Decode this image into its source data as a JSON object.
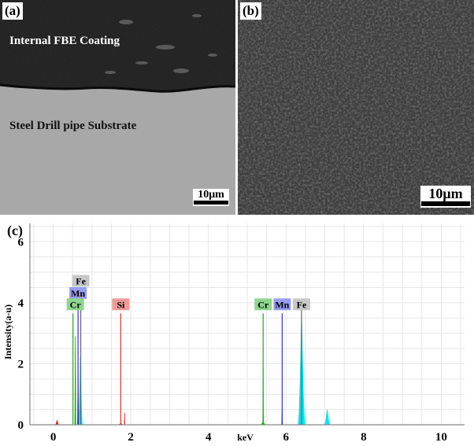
{
  "panel_a": {
    "label": "(a)",
    "coating_label": "Internal FBE Coating",
    "substrate_label": "Steel Drill pipe Substrate",
    "scale_bar": "10μm"
  },
  "panel_b": {
    "label": "(b)",
    "scale_bar": "10μm"
  },
  "panel_c": {
    "label": "(c)",
    "chart_data": {
      "type": "line",
      "xlabel": "keV",
      "ylabel": "Intensity(a-u)",
      "xlim": [
        -0.6,
        10.6
      ],
      "ylim": [
        0,
        6.6
      ],
      "x_ticks": [
        0,
        2,
        4,
        6,
        8,
        10
      ],
      "y_ticks": [
        0,
        2,
        4,
        6
      ],
      "grid": true,
      "peak_labels": [
        {
          "text": "Fe",
          "x": 0.71,
          "color": "#c8c8c8"
        },
        {
          "text": "Mn",
          "x": 0.64,
          "color": "#9a9cf0"
        },
        {
          "text": "Cr",
          "x": 0.57,
          "color": "#8fd48f"
        },
        {
          "text": "Si",
          "x": 1.74,
          "color": "#f29a9a"
        },
        {
          "text": "Cr",
          "x": 5.41,
          "color": "#8fd48f"
        },
        {
          "text": "Mn",
          "x": 5.9,
          "color": "#9a9cf0"
        },
        {
          "text": "Fe",
          "x": 6.4,
          "color": "#c8c8c8"
        }
      ],
      "marker_lines": [
        {
          "x": 0.51,
          "y": 3.65,
          "color": "#22aa22"
        },
        {
          "x": 0.64,
          "y": 3.8,
          "color": "#3333cc"
        },
        {
          "x": 0.71,
          "y": 3.9,
          "color": "#666666"
        },
        {
          "x": 1.74,
          "y": 3.65,
          "color": "#dd3333"
        },
        {
          "x": 5.41,
          "y": 3.65,
          "color": "#22aa22"
        },
        {
          "x": 5.9,
          "y": 3.65,
          "color": "#3333cc"
        },
        {
          "x": 6.4,
          "y": 3.9,
          "color": "#666666"
        }
      ],
      "series": [
        {
          "color": "#00e5ee",
          "peaks": [
            {
              "x": 0.7,
              "h": 2.2,
              "w": 0.06
            },
            {
              "x": 6.4,
              "h": 3.7,
              "w": 0.1
            },
            {
              "x": 7.06,
              "h": 0.5,
              "w": 0.08
            }
          ]
        },
        {
          "color": "#11aa11",
          "peaks": [
            {
              "x": 0.57,
              "h": 2.9,
              "w": 0.02
            },
            {
              "x": 5.41,
              "h": 1.85,
              "w": 0.012
            },
            {
              "x": 5.41,
              "h": 0.1,
              "w": 0.07
            }
          ]
        },
        {
          "color": "#2222bb",
          "peaks": [
            {
              "x": 0.64,
              "h": 1.9,
              "w": 0.02
            },
            {
              "x": 5.9,
              "h": 0.55,
              "w": 0.012
            }
          ]
        },
        {
          "color": "#dd2222",
          "peaks": [
            {
              "x": 0.1,
              "h": 0.15,
              "w": 0.05
            },
            {
              "x": 1.74,
              "h": 0.05,
              "w": 0.06
            },
            {
              "x": 1.84,
              "h": 0.4,
              "w": 0.008
            }
          ]
        }
      ]
    }
  }
}
